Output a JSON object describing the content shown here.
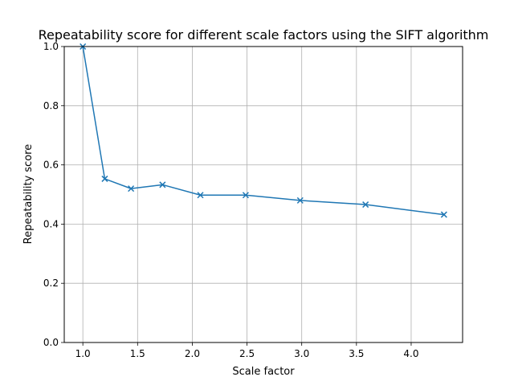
{
  "chart_data": {
    "type": "line",
    "title": "Repeatability score for different scale factors using the SIFT algorithm",
    "xlabel": "Scale factor",
    "ylabel": "Repeatability score",
    "xlim": [
      0.83,
      4.47
    ],
    "ylim": [
      0.0,
      1.0
    ],
    "grid": true,
    "marker": "x",
    "x_ticks": [
      1.0,
      1.5,
      2.0,
      2.5,
      3.0,
      3.5,
      4.0
    ],
    "x_tick_labels": [
      "1.0",
      "1.5",
      "2.0",
      "2.5",
      "3.0",
      "3.5",
      "4.0"
    ],
    "y_ticks": [
      0.0,
      0.2,
      0.4,
      0.6,
      0.8,
      1.0
    ],
    "y_tick_labels": [
      "0.0",
      "0.2",
      "0.4",
      "0.6",
      "0.8",
      "1.0"
    ],
    "series": [
      {
        "color": "#1f77b4",
        "x": [
          1.0,
          1.2,
          1.44,
          1.728,
          2.074,
          2.488,
          2.986,
          3.583,
          4.3
        ],
        "y": [
          1.0,
          0.553,
          0.52,
          0.533,
          0.498,
          0.498,
          0.48,
          0.466,
          0.432
        ]
      }
    ]
  }
}
